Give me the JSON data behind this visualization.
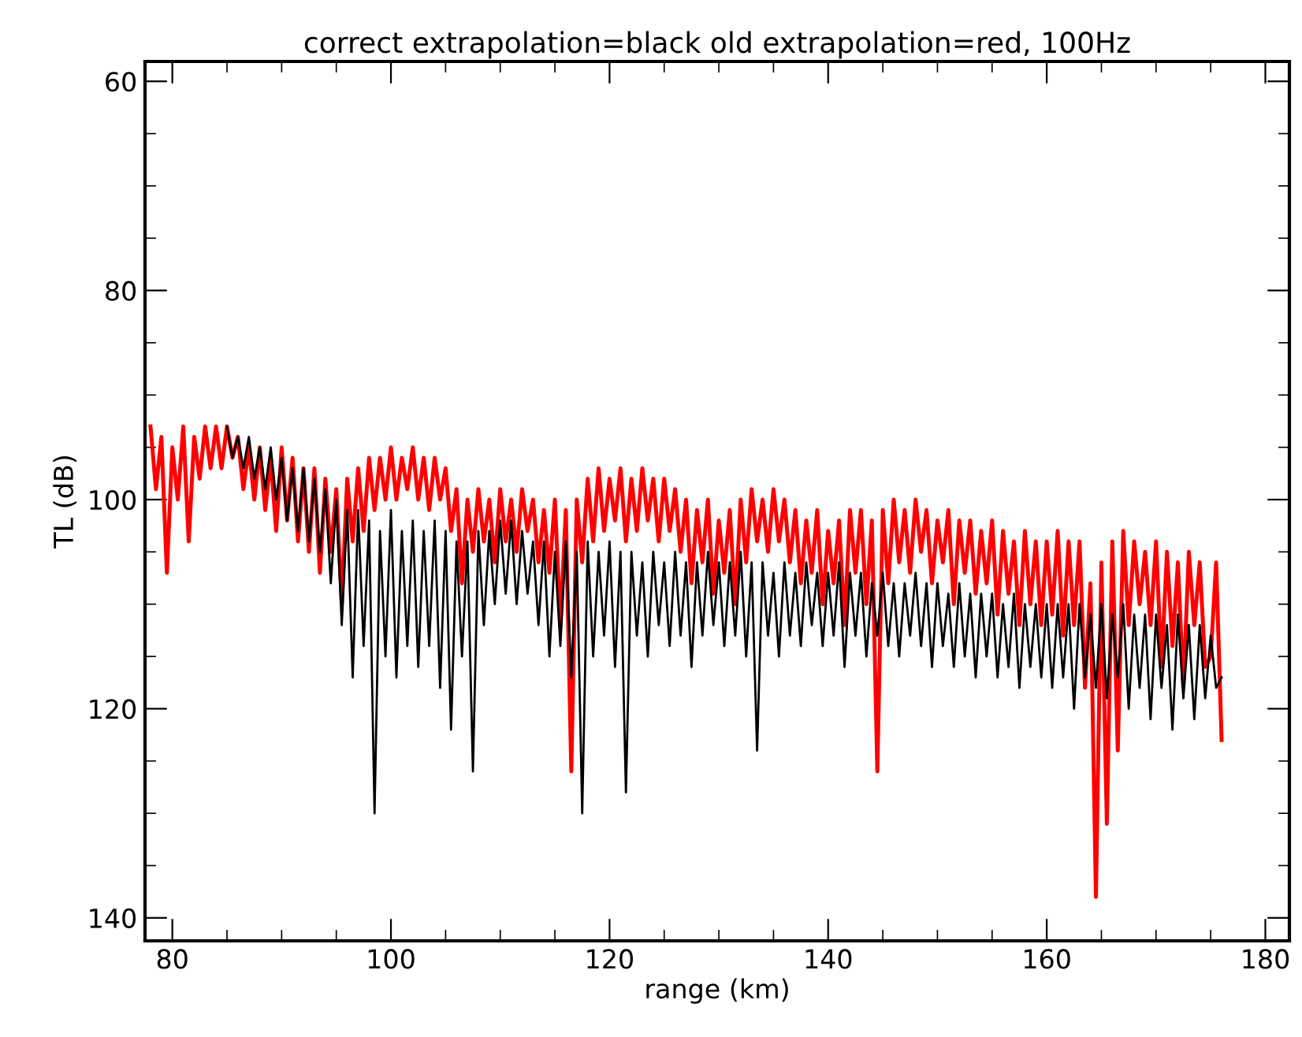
{
  "chart_data": {
    "type": "line",
    "title": "correct extrapolation=black old extrapolation=red, 100Hz",
    "xlabel": "range (km)",
    "ylabel": "TL (dB)",
    "xlim": [
      77.5,
      182.2
    ],
    "ylim": [
      142.2,
      58.1
    ],
    "xticks": [
      80,
      100,
      120,
      140,
      160,
      180
    ],
    "yticks": [
      60,
      80,
      100,
      120,
      140
    ],
    "grid": false,
    "legend": false,
    "marker": "none",
    "line_style": "solid",
    "series": [
      {
        "color": "#ff0000",
        "x": [
          78,
          78.5,
          79,
          79.5,
          80,
          80.5,
          81,
          81.5,
          82,
          82.5,
          83,
          83.5,
          84,
          84.5,
          85,
          85.5,
          86,
          86.5,
          87,
          87.5,
          88,
          88.5,
          89,
          89.5,
          90,
          90.5,
          91,
          91.5,
          92,
          92.5,
          93,
          93.5,
          94,
          94.5,
          95,
          95.5,
          96,
          96.5,
          97,
          97.5,
          98,
          98.5,
          99,
          99.5,
          100,
          100.5,
          101,
          101.5,
          102,
          102.5,
          103,
          103.5,
          104,
          104.5,
          105,
          105.5,
          106,
          106.5,
          107,
          107.5,
          108,
          108.5,
          109,
          109.5,
          110,
          110.5,
          111,
          111.5,
          112,
          112.5,
          113,
          113.5,
          114,
          114.5,
          115,
          115.5,
          116,
          116.5,
          117,
          117.5,
          118,
          118.5,
          119,
          119.5,
          120,
          120.5,
          121,
          121.5,
          122,
          122.5,
          123,
          123.5,
          124,
          124.5,
          125,
          125.5,
          126,
          126.5,
          127,
          127.5,
          128,
          128.5,
          129,
          129.5,
          130,
          130.5,
          131,
          131.5,
          132,
          132.5,
          133,
          133.5,
          134,
          134.5,
          135,
          135.5,
          136,
          136.5,
          137,
          137.5,
          138,
          138.5,
          139,
          139.5,
          140,
          140.5,
          141,
          141.5,
          142,
          142.5,
          143,
          143.5,
          144,
          144.5,
          145,
          145.5,
          146,
          146.5,
          147,
          147.5,
          148,
          148.5,
          149,
          149.5,
          150,
          150.5,
          151,
          151.5,
          152,
          152.5,
          153,
          153.5,
          154,
          154.5,
          155,
          155.5,
          156,
          156.5,
          157,
          157.5,
          158,
          158.5,
          159,
          159.5,
          160,
          160.5,
          161,
          161.5,
          162,
          162.5,
          163,
          163.5,
          164,
          164.5,
          165,
          165.5,
          166,
          166.5,
          167,
          167.5,
          168,
          168.5,
          169,
          169.5,
          170,
          170.5,
          171,
          171.5,
          172,
          172.5,
          173,
          173.5,
          174,
          174.5,
          175,
          175.5,
          176
        ],
        "values": [
          93,
          99,
          94,
          107,
          95,
          100,
          93,
          104,
          94,
          98,
          93,
          97,
          93,
          97,
          93,
          96,
          94,
          99,
          95,
          100,
          95,
          101,
          96,
          103,
          95,
          102,
          96,
          104,
          97,
          105,
          97,
          107,
          98,
          105,
          99,
          110,
          98,
          104,
          97,
          103,
          96,
          101,
          96,
          100,
          95,
          100,
          96,
          99,
          95,
          100,
          96,
          101,
          96,
          100,
          97,
          103,
          99,
          108,
          100,
          105,
          99,
          104,
          100,
          106,
          99,
          104,
          100,
          105,
          99,
          103,
          100,
          106,
          101,
          107,
          100,
          112,
          101,
          126,
          100,
          106,
          98,
          104,
          97,
          103,
          98,
          102,
          97,
          104,
          98,
          103,
          97,
          102,
          98,
          104,
          98,
          103,
          99,
          105,
          100,
          108,
          101,
          106,
          100,
          109,
          102,
          107,
          101,
          110,
          100,
          106,
          99,
          104,
          100,
          105,
          99,
          104,
          100,
          106,
          101,
          108,
          102,
          107,
          101,
          110,
          103,
          108,
          102,
          112,
          101,
          107,
          101,
          110,
          102,
          126,
          101,
          108,
          100,
          106,
          101,
          107,
          100,
          105,
          101,
          108,
          102,
          106,
          101,
          110,
          102,
          107,
          102,
          109,
          103,
          108,
          102,
          111,
          103,
          109,
          104,
          112,
          103,
          110,
          104,
          112,
          104,
          111,
          103,
          113,
          104,
          112,
          104,
          118,
          108,
          138,
          106,
          131,
          104,
          124,
          103,
          112,
          104,
          110,
          105,
          112,
          104,
          116,
          105,
          114,
          106,
          118,
          105,
          112,
          106,
          116,
          115,
          106,
          123
        ]
      },
      {
        "color": "#000000",
        "x": [
          85,
          85.5,
          86,
          86.5,
          87,
          87.5,
          88,
          88.5,
          89,
          89.5,
          90,
          90.5,
          91,
          91.5,
          92,
          92.5,
          93,
          93.5,
          94,
          94.5,
          95,
          95.5,
          96,
          96.5,
          97,
          97.5,
          98,
          98.5,
          99,
          99.5,
          100,
          100.5,
          101,
          101.5,
          102,
          102.5,
          103,
          103.5,
          104,
          104.5,
          105,
          105.5,
          106,
          106.5,
          107,
          107.5,
          108,
          108.5,
          109,
          109.5,
          110,
          110.5,
          111,
          111.5,
          112,
          112.5,
          113,
          113.5,
          114,
          114.5,
          115,
          115.5,
          116,
          116.5,
          117,
          117.5,
          118,
          118.5,
          119,
          119.5,
          120,
          120.5,
          121,
          121.5,
          122,
          122.5,
          123,
          123.5,
          124,
          124.5,
          125,
          125.5,
          126,
          126.5,
          127,
          127.5,
          128,
          128.5,
          129,
          129.5,
          130,
          130.5,
          131,
          131.5,
          132,
          132.5,
          133,
          133.5,
          134,
          134.5,
          135,
          135.5,
          136,
          136.5,
          137,
          137.5,
          138,
          138.5,
          139,
          139.5,
          140,
          140.5,
          141,
          141.5,
          142,
          142.5,
          143,
          143.5,
          144,
          144.5,
          145,
          145.5,
          146,
          146.5,
          147,
          147.5,
          148,
          148.5,
          149,
          149.5,
          150,
          150.5,
          151,
          151.5,
          152,
          152.5,
          153,
          153.5,
          154,
          154.5,
          155,
          155.5,
          156,
          156.5,
          157,
          157.5,
          158,
          158.5,
          159,
          159.5,
          160,
          160.5,
          161,
          161.5,
          162,
          162.5,
          163,
          163.5,
          164,
          164.5,
          165,
          165.5,
          166,
          166.5,
          167,
          167.5,
          168,
          168.5,
          169,
          169.5,
          170,
          170.5,
          171,
          171.5,
          172,
          172.5,
          173,
          173.5,
          174,
          174.5,
          175,
          175.5,
          176
        ],
        "values": [
          93,
          96,
          94,
          97,
          94,
          98,
          95,
          99,
          95,
          100,
          96,
          102,
          97,
          103,
          97,
          104,
          98,
          105,
          99,
          108,
          100,
          112,
          101,
          117,
          101,
          114,
          102,
          130,
          103,
          115,
          101,
          117,
          103,
          114,
          102,
          116,
          103,
          114,
          102,
          118,
          103,
          122,
          104,
          115,
          104,
          126,
          103,
          112,
          103,
          110,
          102,
          109,
          102,
          110,
          103,
          109,
          104,
          112,
          104,
          115,
          105,
          114,
          104,
          117,
          105,
          130,
          104,
          115,
          105,
          113,
          104,
          116,
          105,
          128,
          105,
          113,
          106,
          115,
          105,
          112,
          106,
          114,
          105,
          113,
          106,
          116,
          106,
          113,
          105,
          112,
          106,
          114,
          106,
          113,
          105,
          115,
          106,
          124,
          106,
          113,
          107,
          115,
          106,
          113,
          107,
          114,
          106,
          112,
          107,
          114,
          107,
          113,
          106,
          116,
          107,
          113,
          107,
          115,
          108,
          113,
          107,
          114,
          108,
          115,
          108,
          113,
          107,
          114,
          108,
          116,
          108,
          114,
          109,
          116,
          108,
          115,
          109,
          117,
          109,
          115,
          109,
          117,
          110,
          116,
          109,
          118,
          110,
          116,
          110,
          117,
          110,
          118,
          110,
          117,
          110,
          120,
          110,
          117,
          111,
          118,
          110,
          119,
          111,
          117,
          110,
          120,
          111,
          118,
          111,
          121,
          111,
          118,
          112,
          122,
          111,
          119,
          112,
          121,
          112,
          119,
          113,
          118,
          117
        ]
      }
    ]
  }
}
